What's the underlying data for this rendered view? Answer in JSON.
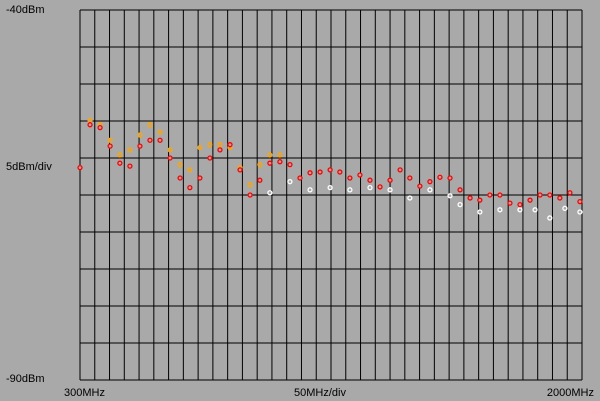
{
  "chart_data": {
    "type": "scatter",
    "xlim": [
      300,
      2000
    ],
    "ylim": [
      -90,
      -40
    ],
    "x_div": 50,
    "y_div": 5,
    "x_div_label": "50MHz/div",
    "y_div_label": "5dBm/div",
    "xticks": [
      {
        "value": 300,
        "label": "300MHz"
      },
      {
        "value": 2000,
        "label": "2000MHz"
      }
    ],
    "yticks": [
      {
        "value": -90,
        "label": "-90dBm"
      },
      {
        "value": -40,
        "label": "-40dBm"
      }
    ],
    "grid": true,
    "series": [
      {
        "name": "trace-white",
        "color": "#ffffff",
        "x": [
          943,
          1011,
          1079,
          1147,
          1214,
          1282,
          1350,
          1417,
          1485,
          1553,
          1587,
          1654,
          1722,
          1790,
          1841,
          1891,
          1942,
          1993
        ],
        "values": [
          -64.7,
          -63.2,
          -64.3,
          -64.0,
          -64.3,
          -64.0,
          -64.3,
          -65.4,
          -64.3,
          -65.1,
          -66.3,
          -67.3,
          -67.0,
          -67.0,
          -67.0,
          -68.1,
          -66.8,
          -67.3
        ]
      },
      {
        "name": "trace-orange",
        "color": "#ffa500",
        "x": [
          334,
          368,
          402,
          435,
          469,
          503,
          537,
          571,
          605,
          639,
          672,
          706,
          740,
          774,
          808,
          842,
          876,
          909,
          943,
          977
        ],
        "values": [
          -54.9,
          -55.5,
          -57.6,
          -59.6,
          -58.9,
          -56.9,
          -55.5,
          -56.5,
          -58.9,
          -60.9,
          -61.6,
          -58.6,
          -58.2,
          -58.2,
          -58.6,
          -61.3,
          -63.6,
          -60.9,
          -59.6,
          -59.6
        ]
      },
      {
        "name": "trace-red",
        "color": "#ff0000",
        "x": [
          300,
          334,
          368,
          402,
          435,
          469,
          503,
          537,
          571,
          605,
          639,
          672,
          706,
          740,
          774,
          808,
          842,
          876,
          909,
          943,
          977,
          1011,
          1045,
          1079,
          1113,
          1147,
          1180,
          1214,
          1248,
          1282,
          1316,
          1350,
          1384,
          1417,
          1451,
          1485,
          1519,
          1553,
          1587,
          1621,
          1654,
          1688,
          1722,
          1756,
          1790,
          1824,
          1858,
          1891,
          1925,
          1959,
          1993
        ],
        "values": [
          -61.3,
          -55.5,
          -55.9,
          -58.4,
          -60.7,
          -61.1,
          -58.4,
          -57.6,
          -57.6,
          -60.0,
          -62.7,
          -64.0,
          -62.7,
          -60.0,
          -58.9,
          -58.2,
          -61.6,
          -65.0,
          -63.0,
          -60.7,
          -60.5,
          -60.9,
          -62.7,
          -62.0,
          -61.9,
          -61.6,
          -61.9,
          -62.7,
          -62.3,
          -63.0,
          -63.9,
          -63.0,
          -61.6,
          -62.7,
          -63.8,
          -63.2,
          -62.6,
          -62.7,
          -64.3,
          -65.4,
          -65.7,
          -65.0,
          -65.0,
          -66.1,
          -66.3,
          -65.7,
          -65.0,
          -65.0,
          -65.4,
          -64.7,
          -65.9
        ]
      }
    ]
  }
}
